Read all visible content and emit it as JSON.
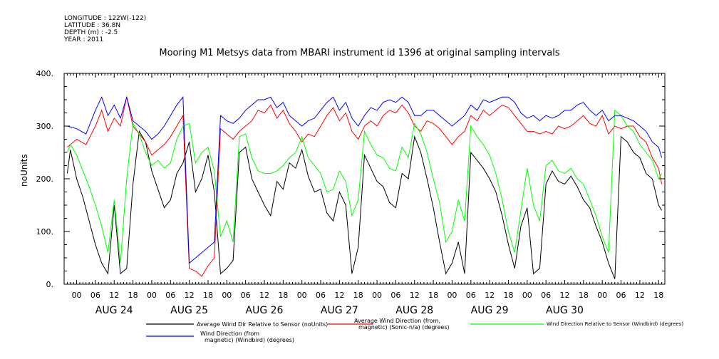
{
  "meta_lines": [
    "LONGITUDE : 122W(-122)",
    "LATITUDE : 36.8N",
    "DEPTH (m) : -2.5",
    "YEAR : 2011"
  ],
  "chart_data": {
    "type": "line",
    "title": "Mooring M1 Metsys data from MBARI instrument id 1396 at original sampling intervals",
    "ylabel": "noUnits",
    "ylim": [
      0,
      400
    ],
    "y_ticks": [
      "0.",
      "100.",
      "200.",
      "300.",
      "400."
    ],
    "y_tick_values": [
      0,
      100,
      200,
      300,
      400
    ],
    "xlim": [
      -4,
      188
    ],
    "x_tick_hours": [
      0,
      6,
      12,
      18,
      24,
      30,
      36,
      42,
      48,
      54,
      60,
      66,
      72,
      78,
      84,
      90,
      96,
      102,
      108,
      114,
      120,
      126,
      132,
      138,
      144,
      150,
      156,
      162,
      168,
      174,
      180,
      186
    ],
    "x_tick_labels": [
      "00",
      "06",
      "12",
      "18",
      "00",
      "06",
      "12",
      "18",
      "00",
      "06",
      "12",
      "18",
      "00",
      "06",
      "12",
      "18",
      "00",
      "06",
      "12",
      "18",
      "00",
      "06",
      "12",
      "18",
      "00",
      "06",
      "12",
      "18",
      "00",
      "06",
      "12",
      "18"
    ],
    "day_labels": [
      "AUG 24",
      "AUG 25",
      "AUG 26",
      "AUG 27",
      "AUG 28",
      "AUG 29",
      "AUG 30"
    ],
    "day_centers_hours": [
      12,
      36,
      60,
      84,
      108,
      132,
      156
    ],
    "x_unit": "hours since Aug 24 00:00",
    "series": [
      {
        "name": "Average Wind Dir Relative to Sensor (noUnits)",
        "color": "#000000",
        "x": [
          -3,
          -2,
          0,
          2,
          4,
          6,
          8,
          10,
          12,
          14,
          16,
          18,
          20,
          22,
          24,
          26,
          28,
          30,
          32,
          34,
          36,
          38,
          40,
          42,
          44,
          46,
          48,
          50,
          52,
          54,
          56,
          58,
          60,
          62,
          64,
          66,
          68,
          70,
          72,
          74,
          76,
          78,
          80,
          82,
          84,
          86,
          88,
          90,
          92,
          94,
          96,
          98,
          100,
          102,
          104,
          106,
          108,
          110,
          112,
          114,
          116,
          118,
          120,
          122,
          124,
          126,
          128,
          130,
          132,
          134,
          136,
          138,
          140,
          142,
          144,
          146,
          148,
          150,
          152,
          154,
          156,
          158,
          160,
          162,
          164,
          166,
          168,
          170,
          172,
          174,
          176,
          178,
          180,
          182,
          184,
          186,
          187
        ],
        "y": [
          210,
          255,
          200,
          165,
          120,
          75,
          40,
          20,
          150,
          20,
          30,
          190,
          290,
          270,
          215,
          180,
          145,
          160,
          210,
          230,
          270,
          175,
          200,
          245,
          175,
          20,
          30,
          45,
          250,
          260,
          200,
          175,
          150,
          130,
          195,
          180,
          230,
          220,
          255,
          205,
          175,
          180,
          135,
          120,
          175,
          150,
          20,
          70,
          245,
          220,
          195,
          185,
          155,
          145,
          210,
          200,
          280,
          250,
          200,
          145,
          80,
          20,
          40,
          80,
          20,
          250,
          235,
          220,
          200,
          175,
          130,
          75,
          30,
          110,
          145,
          20,
          30,
          190,
          215,
          195,
          190,
          205,
          185,
          160,
          145,
          110,
          80,
          40,
          10,
          280,
          270,
          250,
          240,
          210,
          200,
          150,
          140
        ]
      },
      {
        "name": "Average Wind Direction (from, magnetic) (Sonic-n/a) (degrees)",
        "color": "#ff0000",
        "x": [
          -3,
          0,
          3,
          6,
          8,
          10,
          12,
          14,
          16,
          18,
          20,
          22,
          24,
          26,
          28,
          30,
          32,
          34,
          36,
          38,
          40,
          42,
          44,
          46,
          48,
          50,
          52,
          54,
          56,
          58,
          60,
          62,
          64,
          66,
          68,
          70,
          72,
          74,
          76,
          78,
          80,
          82,
          84,
          86,
          88,
          90,
          92,
          94,
          96,
          98,
          100,
          102,
          104,
          106,
          108,
          110,
          112,
          114,
          116,
          118,
          120,
          122,
          124,
          126,
          128,
          130,
          132,
          134,
          136,
          138,
          140,
          142,
          144,
          146,
          148,
          150,
          152,
          154,
          156,
          158,
          160,
          162,
          164,
          166,
          168,
          170,
          172,
          174,
          176,
          178,
          180,
          182,
          184,
          186,
          187
        ],
        "y": [
          260,
          275,
          265,
          300,
          330,
          290,
          315,
          300,
          355,
          300,
          285,
          270,
          245,
          255,
          265,
          280,
          300,
          320,
          30,
          25,
          15,
          35,
          50,
          295,
          285,
          275,
          290,
          300,
          310,
          330,
          325,
          340,
          315,
          330,
          305,
          290,
          270,
          285,
          280,
          300,
          320,
          335,
          310,
          325,
          290,
          275,
          300,
          310,
          300,
          320,
          330,
          325,
          340,
          325,
          300,
          290,
          310,
          305,
          295,
          280,
          265,
          280,
          290,
          320,
          310,
          330,
          320,
          330,
          340,
          335,
          320,
          305,
          290,
          290,
          285,
          290,
          285,
          300,
          295,
          300,
          310,
          320,
          305,
          300,
          320,
          285,
          300,
          295,
          300,
          300,
          280,
          270,
          240,
          220,
          190
        ]
      },
      {
        "name": "Wind Direction Relative to Sensor (Windbird) (degrees)",
        "color": "#00ff00",
        "x": [
          -3,
          -2,
          0,
          2,
          4,
          6,
          8,
          10,
          12,
          14,
          16,
          18,
          20,
          22,
          24,
          26,
          28,
          30,
          32,
          34,
          36,
          38,
          40,
          42,
          44,
          46,
          48,
          50,
          52,
          54,
          56,
          58,
          60,
          62,
          64,
          66,
          68,
          70,
          72,
          74,
          76,
          78,
          80,
          82,
          84,
          86,
          88,
          90,
          92,
          94,
          96,
          98,
          100,
          102,
          104,
          106,
          108,
          110,
          112,
          114,
          116,
          118,
          120,
          122,
          124,
          126,
          128,
          130,
          132,
          134,
          136,
          138,
          140,
          142,
          144,
          146,
          148,
          150,
          152,
          154,
          156,
          158,
          160,
          162,
          164,
          166,
          168,
          170,
          172,
          174,
          176,
          178,
          180,
          182,
          184,
          186,
          187
        ],
        "y": [
          250,
          265,
          245,
          215,
          185,
          150,
          110,
          60,
          160,
          40,
          200,
          305,
          285,
          250,
          225,
          235,
          220,
          230,
          275,
          300,
          305,
          230,
          250,
          260,
          215,
          90,
          120,
          80,
          280,
          285,
          240,
          215,
          210,
          210,
          215,
          225,
          240,
          250,
          280,
          240,
          225,
          210,
          175,
          180,
          215,
          195,
          130,
          160,
          290,
          265,
          245,
          240,
          220,
          215,
          260,
          240,
          305,
          285,
          250,
          200,
          155,
          80,
          100,
          160,
          120,
          300,
          280,
          265,
          245,
          210,
          160,
          100,
          60,
          140,
          220,
          150,
          120,
          225,
          235,
          215,
          210,
          220,
          200,
          190,
          160,
          130,
          90,
          60,
          330,
          320,
          300,
          290,
          265,
          250,
          235,
          200,
          210
        ]
      },
      {
        "name": "Wind Direction (from, magnetic) (Windbird) (degrees)",
        "color": "#0000ff",
        "x": [
          -3,
          0,
          3,
          6,
          8,
          10,
          12,
          14,
          16,
          18,
          20,
          22,
          24,
          26,
          28,
          30,
          32,
          34,
          36,
          38,
          40,
          42,
          44,
          46,
          48,
          50,
          52,
          54,
          56,
          58,
          60,
          62,
          64,
          66,
          68,
          70,
          72,
          74,
          76,
          78,
          80,
          82,
          84,
          86,
          88,
          90,
          92,
          94,
          96,
          98,
          100,
          102,
          104,
          106,
          108,
          110,
          112,
          114,
          116,
          118,
          120,
          122,
          124,
          126,
          128,
          130,
          132,
          134,
          136,
          138,
          140,
          142,
          144,
          146,
          148,
          150,
          152,
          154,
          156,
          158,
          160,
          162,
          164,
          166,
          168,
          170,
          172,
          174,
          176,
          178,
          180,
          182,
          184,
          186,
          187
        ],
        "y": [
          300,
          295,
          285,
          330,
          355,
          320,
          340,
          315,
          355,
          310,
          300,
          290,
          275,
          285,
          300,
          320,
          340,
          355,
          40,
          50,
          60,
          70,
          80,
          320,
          310,
          305,
          315,
          330,
          340,
          350,
          350,
          355,
          335,
          345,
          320,
          310,
          300,
          310,
          315,
          330,
          345,
          355,
          330,
          345,
          315,
          300,
          320,
          335,
          330,
          345,
          350,
          345,
          355,
          345,
          320,
          320,
          330,
          330,
          320,
          310,
          300,
          310,
          320,
          340,
          330,
          350,
          345,
          350,
          355,
          355,
          345,
          325,
          315,
          320,
          310,
          320,
          315,
          320,
          330,
          330,
          340,
          345,
          330,
          320,
          330,
          310,
          320,
          320,
          315,
          310,
          300,
          290,
          270,
          260,
          240
        ]
      }
    ]
  }
}
